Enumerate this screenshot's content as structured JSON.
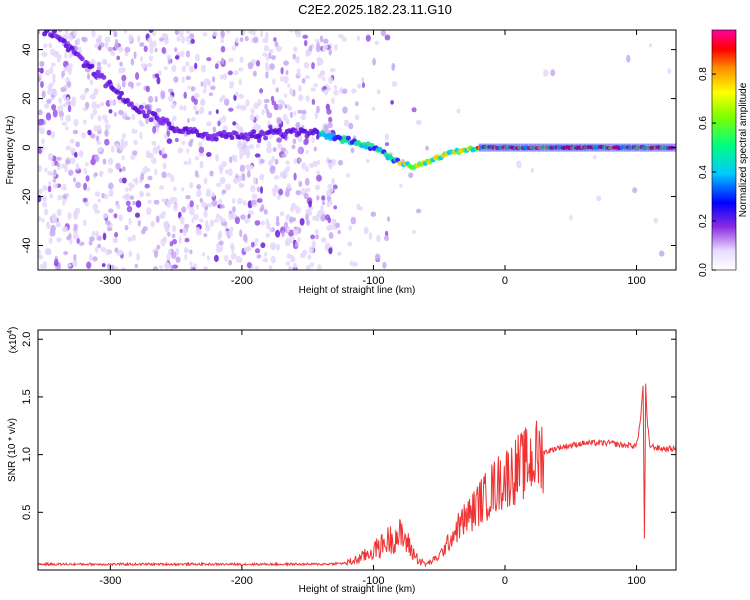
{
  "title": "C2E2.2025.182.23.11.G10",
  "chart_data": [
    {
      "type": "heatmap",
      "xlabel": "Height of straight line (km)",
      "ylabel": "Frequency (Hz)",
      "xlim": [
        -355,
        130
      ],
      "ylim": [
        -50,
        48
      ],
      "xticks": [
        -300,
        -200,
        -100,
        0,
        100
      ],
      "yticks": [
        -40,
        -20,
        0,
        20,
        40
      ],
      "colorbar": {
        "label": "Normalized spectral amplitude",
        "range": [
          0,
          0.98
        ],
        "ticks": [
          0.0,
          0.2,
          0.4,
          0.6,
          0.8
        ],
        "tick_labels": [
          "0.0",
          "0.2",
          "0.4",
          "0.6",
          "0.8"
        ],
        "colormap": "rainbow"
      },
      "ridge": {
        "x": [
          -345,
          -330,
          -310,
          -290,
          -270,
          -250,
          -230,
          -210,
          -190,
          -170,
          -150,
          -135,
          -120,
          -105,
          -90,
          -80,
          -70,
          -60,
          -50,
          -40,
          -30,
          -20,
          -10,
          0,
          20,
          40,
          60,
          80,
          100,
          130
        ],
        "frequency": [
          47,
          40,
          30,
          20,
          13,
          8,
          5,
          5,
          5,
          6,
          6,
          5,
          3,
          1,
          -3,
          -6,
          -8,
          -6,
          -4,
          -2,
          -1,
          0,
          0,
          0,
          0,
          0,
          0,
          0,
          0,
          0
        ]
      }
    },
    {
      "type": "line",
      "xlabel": "Height of straight line (km)",
      "ylabel": "SNR (10 * v/v)",
      "yscale_label": "(x10",
      "yscale_exponent": "4",
      "xlim": [
        -355,
        130
      ],
      "ylim": [
        0,
        2.08
      ],
      "xticks": [
        -300,
        -200,
        -100,
        0,
        100
      ],
      "yticks": [
        0.5,
        1.0,
        1.5,
        2.0
      ],
      "ytick_labels": [
        "0.5",
        "1.0",
        "1.5",
        "2.0"
      ],
      "series": [
        {
          "color": "#ee3333",
          "x": [
            -355,
            -320,
            -280,
            -240,
            -200,
            -160,
            -140,
            -120,
            -110,
            -100,
            -95,
            -90,
            -85,
            -80,
            -75,
            -70,
            -65,
            -60,
            -55,
            -50,
            -45,
            -40,
            -35,
            -30,
            -25,
            -20,
            -15,
            -10,
            -5,
            0,
            10,
            20,
            30,
            40,
            50,
            60,
            70,
            80,
            90,
            100,
            103,
            105,
            106,
            107,
            108,
            110,
            115,
            120,
            130
          ],
          "y": [
            0.05,
            0.05,
            0.05,
            0.05,
            0.05,
            0.05,
            0.05,
            0.06,
            0.1,
            0.17,
            0.2,
            0.25,
            0.28,
            0.3,
            0.25,
            0.15,
            0.08,
            0.05,
            0.08,
            0.12,
            0.2,
            0.3,
            0.38,
            0.45,
            0.5,
            0.58,
            0.63,
            0.7,
            0.75,
            0.8,
            0.88,
            0.95,
            1.02,
            1.06,
            1.08,
            1.1,
            1.1,
            1.1,
            1.08,
            1.08,
            1.3,
            1.6,
            0.25,
            1.6,
            1.3,
            1.08,
            1.06,
            1.05,
            1.05
          ]
        }
      ]
    }
  ]
}
